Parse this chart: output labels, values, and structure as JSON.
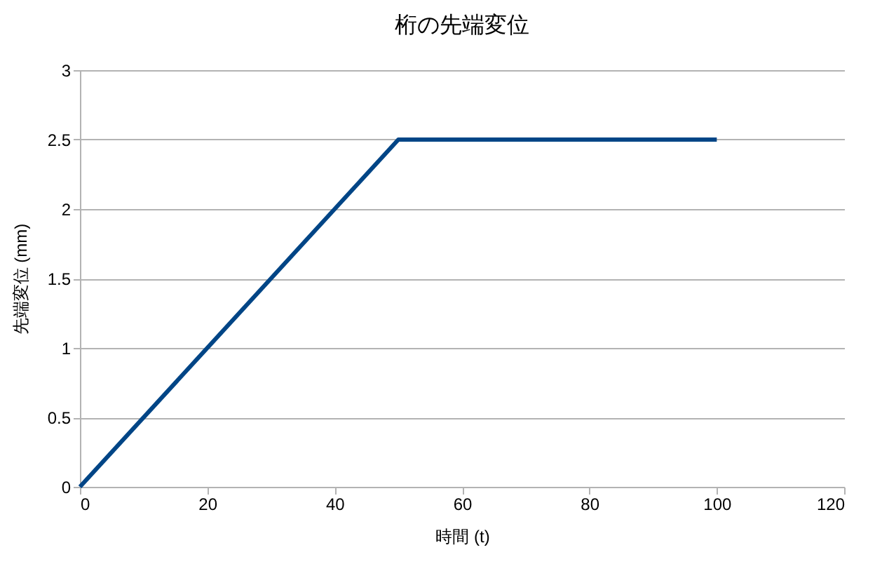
{
  "chart_data": {
    "type": "line",
    "title": "桁の先端変位",
    "xlabel": "時間 (t)",
    "ylabel": "先端変位 (mm)",
    "x": [
      0,
      50,
      100
    ],
    "series": [
      {
        "color": "#004586",
        "values": [
          0,
          2.5,
          2.5
        ]
      }
    ],
    "xlim": [
      0,
      120
    ],
    "xticks": [
      0,
      20,
      40,
      60,
      80,
      100,
      120
    ],
    "ylim": [
      0,
      3
    ],
    "yticks": [
      0,
      0.5,
      1,
      1.5,
      2,
      2.5,
      3
    ],
    "grid": "y",
    "marker": "none",
    "line_style": "solid"
  }
}
